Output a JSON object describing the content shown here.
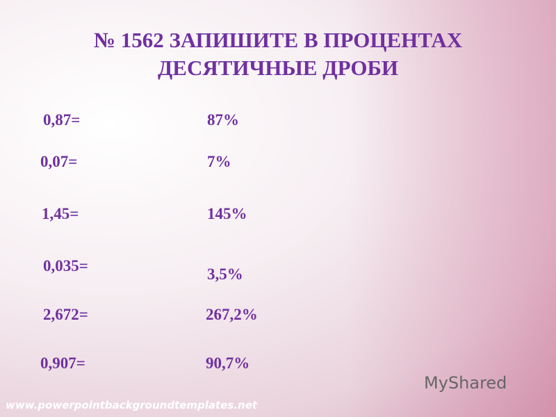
{
  "title": "№ 1562 ЗАПИШИТЕ В ПРОЦЕНТАХ ДЕСЯТИЧНЫЕ ДРОБИ",
  "rows": [
    [
      "0,87=",
      "87%"
    ],
    [
      "0,07=",
      "7%"
    ],
    [
      "1,45=",
      "145%"
    ],
    [
      "0,035=",
      "3,5%"
    ],
    [
      "2,672=",
      "267,2%"
    ],
    [
      "0,907=",
      "90,7%"
    ]
  ],
  "watermark": "www.powerpointbackgroundtemplates.net",
  "logo": "MyShared"
}
